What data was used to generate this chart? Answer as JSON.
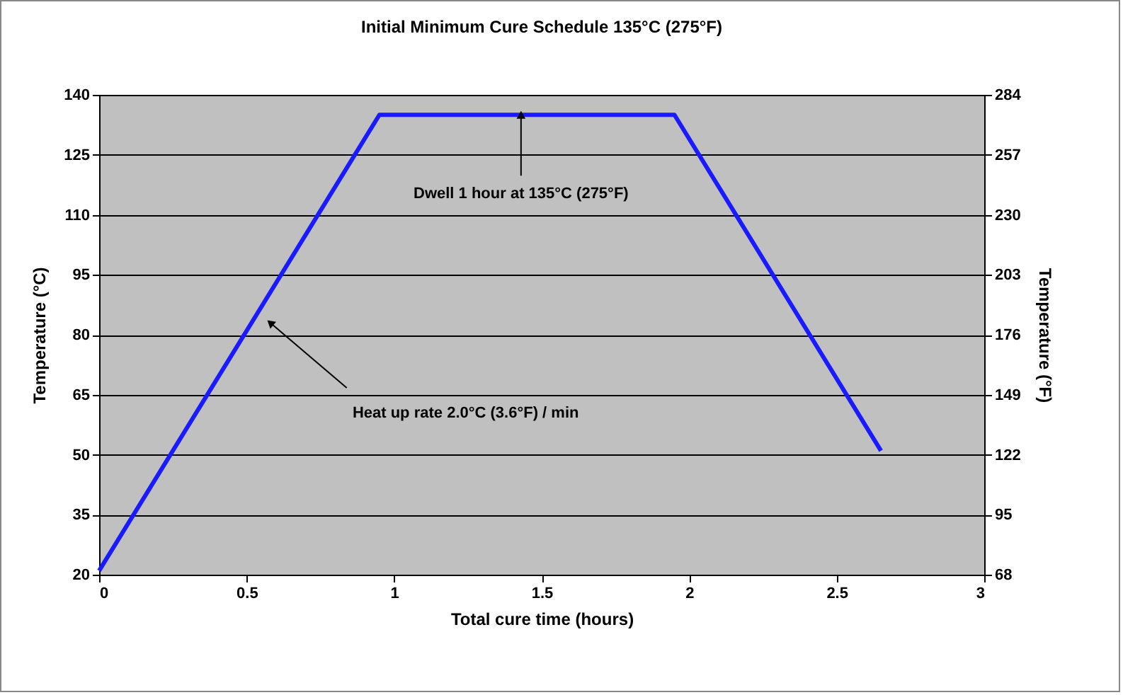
{
  "chart_data": {
    "type": "line",
    "title": "Initial Minimum Cure Schedule 135°C (275°F)",
    "xlabel": "Total cure time (hours)",
    "ylabel": "Temperature (°C)",
    "y2label": "Temperature (°F)",
    "x": [
      0,
      0.95,
      1.95,
      2.65
    ],
    "series": [
      {
        "color": "#1a1aff",
        "values": [
          21,
          135,
          135,
          51
        ]
      }
    ],
    "xlim": [
      0,
      3
    ],
    "xticks": [
      0,
      0.5,
      1,
      1.5,
      2,
      2.5,
      3
    ],
    "ylim": [
      20,
      140
    ],
    "yticks": [
      20,
      35,
      50,
      65,
      80,
      95,
      110,
      125,
      140
    ],
    "y2lim": [
      68,
      284
    ],
    "y2ticks": [
      68,
      95,
      122,
      149,
      176,
      203,
      230,
      257,
      284
    ],
    "grid": "y",
    "marker": "none",
    "line_style": "solid",
    "annotations": [
      {
        "text": "Dwell 1 hour at 135°C (275°F)",
        "x": 1.43,
        "y": 135
      },
      {
        "text": "Heat up rate 2.0°C (3.6°F) / min",
        "x": 0.58,
        "y": 83
      }
    ]
  }
}
